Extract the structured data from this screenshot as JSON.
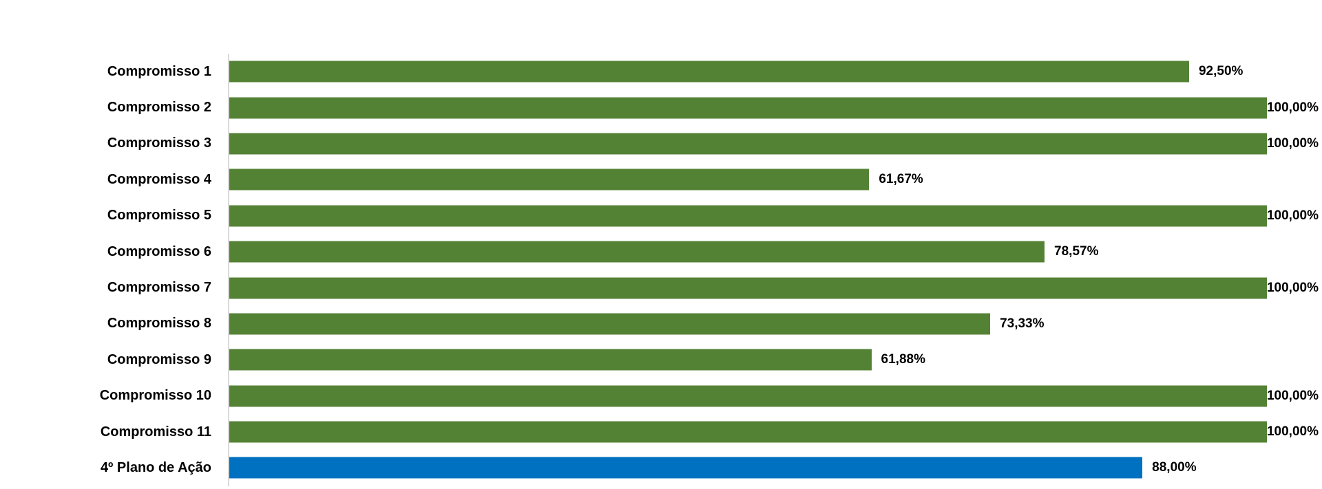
{
  "chart_data": {
    "type": "bar",
    "orientation": "horizontal",
    "title": "",
    "xlabel": "",
    "ylabel": "",
    "xlim": [
      0,
      100
    ],
    "grid": false,
    "legend_position": "none",
    "categories": [
      "Compromisso 1",
      "Compromisso 2",
      "Compromisso 3",
      "Compromisso 4",
      "Compromisso 5",
      "Compromisso 6",
      "Compromisso 7",
      "Compromisso 8",
      "Compromisso 9",
      "Compromisso 10",
      "Compromisso 11",
      "4º Plano de Ação"
    ],
    "values": [
      92.5,
      100,
      100,
      61.67,
      100,
      78.57,
      100,
      73.33,
      61.88,
      100,
      100,
      88
    ],
    "value_labels": [
      "92,50%",
      "100,00%",
      "100,00%",
      "61,67%",
      "100,00%",
      "78,57%",
      "100,00%",
      "73,33%",
      "61,88%",
      "100,00%",
      "100,00%",
      "88,00%"
    ],
    "bar_colors": [
      "#548235",
      "#548235",
      "#548235",
      "#548235",
      "#548235",
      "#548235",
      "#548235",
      "#548235",
      "#548235",
      "#548235",
      "#548235",
      "#0070C0"
    ]
  },
  "colors": {
    "compromisso_bar": "#548235",
    "plano_de_acao_bar": "#0070C0",
    "axis_line": "#D9D9D9",
    "text": "#000000",
    "background": "#FFFFFF"
  }
}
